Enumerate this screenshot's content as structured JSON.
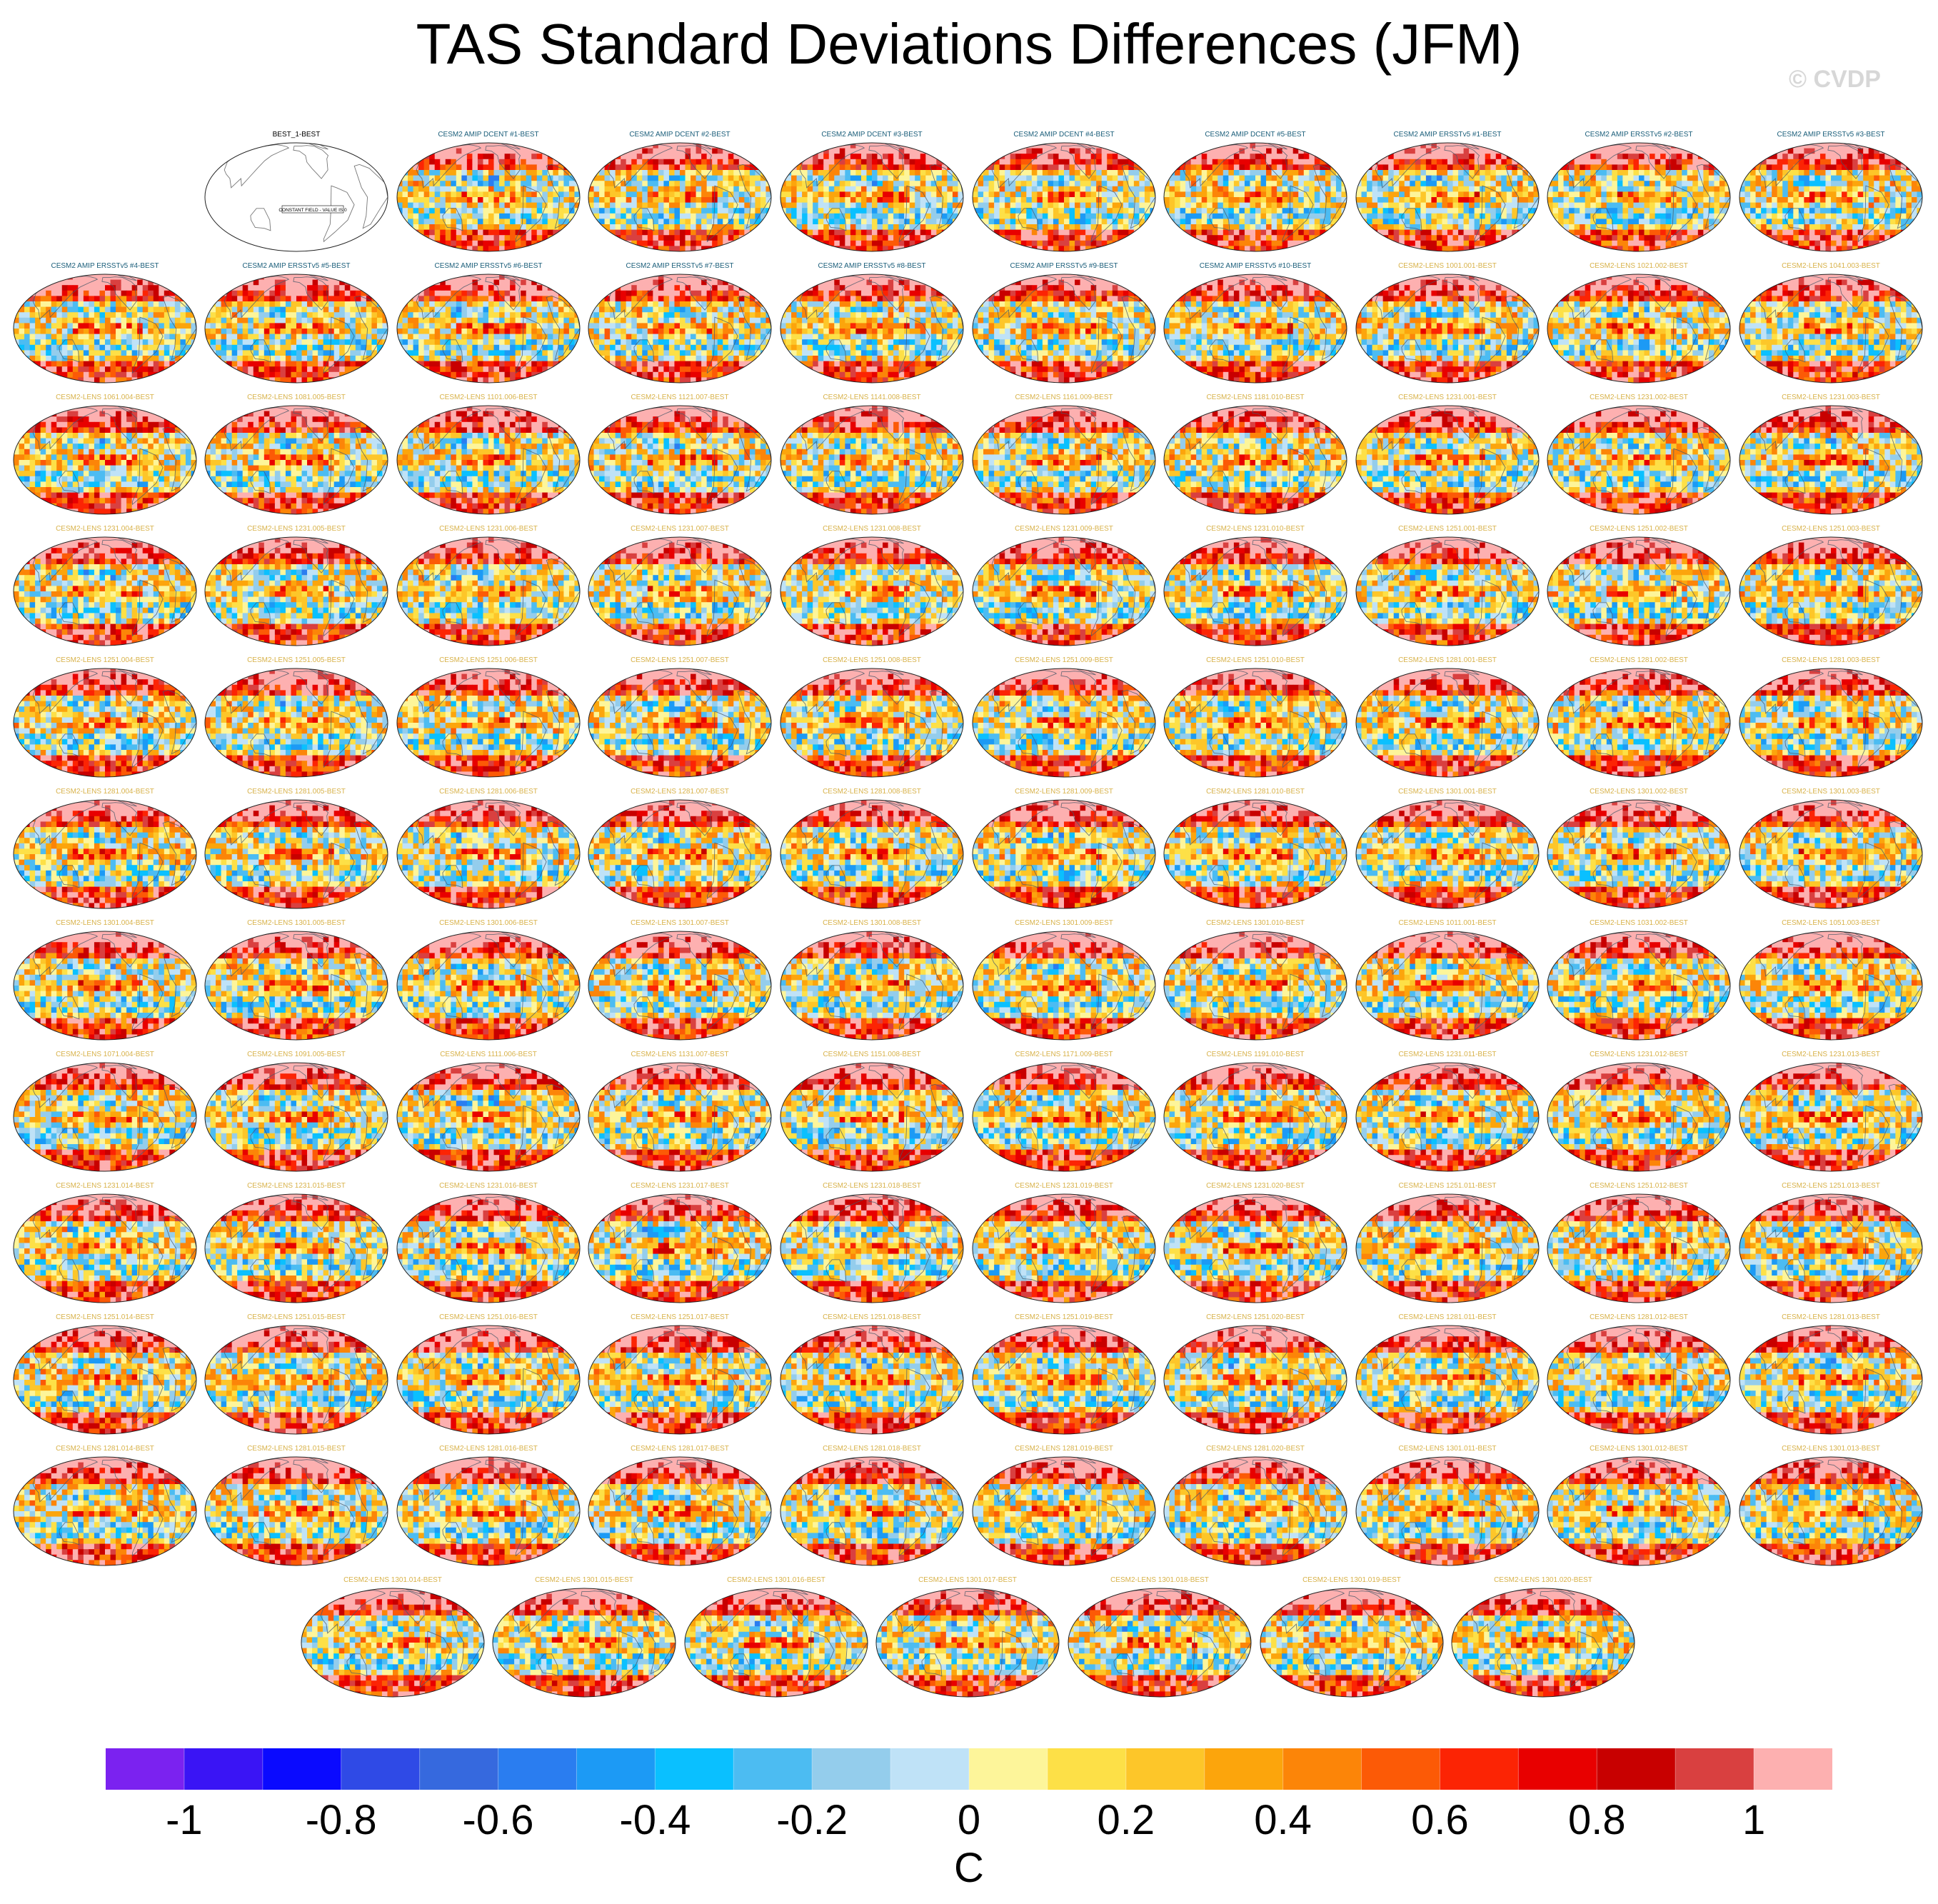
{
  "chart_data": {
    "type": "heatmap",
    "title": "TAS Standard Deviations Differences (JFM)",
    "credit": "© CVDP",
    "units": "C",
    "projection": "global map panels",
    "colorbar": {
      "ticks": [
        "-1",
        "-0.8",
        "-0.6",
        "-0.4",
        "-0.2",
        "0",
        "0.2",
        "0.4",
        "0.6",
        "0.8",
        "1"
      ],
      "range": [
        -1.1,
        1.1
      ],
      "colors": [
        "#7b22f0",
        "#3a14f5",
        "#0a0aff",
        "#2f4ae6",
        "#3669de",
        "#2a7df0",
        "#1c9af5",
        "#0ac0ff",
        "#4cbcf2",
        "#94cdec",
        "#bfe2f7",
        "#fdf59a",
        "#fde047",
        "#fdc629",
        "#fca50c",
        "#fc8508",
        "#fc5a06",
        "#fc2404",
        "#e80000",
        "#c80000",
        "#d94040",
        "#fdb0b0"
      ]
    },
    "panels": [
      {
        "label": "BEST_1-BEST",
        "note": "CONSTANT FIELD - VALUE IS 0",
        "constant": true
      },
      {
        "label": "CESM2 AMIP DCENT #1-BEST"
      },
      {
        "label": "CESM2 AMIP DCENT #2-BEST"
      },
      {
        "label": "CESM2 AMIP DCENT #3-BEST"
      },
      {
        "label": "CESM2 AMIP DCENT #4-BEST"
      },
      {
        "label": "CESM2 AMIP DCENT #5-BEST"
      },
      {
        "label": "CESM2 AMIP ERSSTv5 #1-BEST"
      },
      {
        "label": "CESM2 AMIP ERSSTv5 #2-BEST"
      },
      {
        "label": "CESM2 AMIP ERSSTv5 #3-BEST"
      },
      {
        "label": "CESM2 AMIP ERSSTv5 #4-BEST"
      },
      {
        "label": "CESM2 AMIP ERSSTv5 #5-BEST"
      },
      {
        "label": "CESM2 AMIP ERSSTv5 #6-BEST"
      },
      {
        "label": "CESM2 AMIP ERSSTv5 #7-BEST"
      },
      {
        "label": "CESM2 AMIP ERSSTv5 #8-BEST"
      },
      {
        "label": "CESM2 AMIP ERSSTv5 #9-BEST"
      },
      {
        "label": "CESM2 AMIP ERSSTv5 #10-BEST"
      },
      {
        "label": "CESM2-LENS 1001.001-BEST"
      },
      {
        "label": "CESM2-LENS 1021.002-BEST"
      },
      {
        "label": "CESM2-LENS 1041.003-BEST"
      },
      {
        "label": "CESM2-LENS 1061.004-BEST"
      },
      {
        "label": "CESM2-LENS 1081.005-BEST"
      },
      {
        "label": "CESM2-LENS 1101.006-BEST"
      },
      {
        "label": "CESM2-LENS 1121.007-BEST"
      },
      {
        "label": "CESM2-LENS 1141.008-BEST"
      },
      {
        "label": "CESM2-LENS 1161.009-BEST"
      },
      {
        "label": "CESM2-LENS 1181.010-BEST"
      },
      {
        "label": "CESM2-LENS 1231.001-BEST"
      },
      {
        "label": "CESM2-LENS 1231.002-BEST"
      },
      {
        "label": "CESM2-LENS 1231.003-BEST"
      },
      {
        "label": "CESM2-LENS 1231.004-BEST"
      },
      {
        "label": "CESM2-LENS 1231.005-BEST"
      },
      {
        "label": "CESM2-LENS 1231.006-BEST"
      },
      {
        "label": "CESM2-LENS 1231.007-BEST"
      },
      {
        "label": "CESM2-LENS 1231.008-BEST"
      },
      {
        "label": "CESM2-LENS 1231.009-BEST"
      },
      {
        "label": "CESM2-LENS 1231.010-BEST"
      },
      {
        "label": "CESM2-LENS 1251.001-BEST"
      },
      {
        "label": "CESM2-LENS 1251.002-BEST"
      },
      {
        "label": "CESM2-LENS 1251.003-BEST"
      },
      {
        "label": "CESM2-LENS 1251.004-BEST"
      },
      {
        "label": "CESM2-LENS 1251.005-BEST"
      },
      {
        "label": "CESM2-LENS 1251.006-BEST"
      },
      {
        "label": "CESM2-LENS 1251.007-BEST"
      },
      {
        "label": "CESM2-LENS 1251.008-BEST"
      },
      {
        "label": "CESM2-LENS 1251.009-BEST"
      },
      {
        "label": "CESM2-LENS 1251.010-BEST"
      },
      {
        "label": "CESM2-LENS 1281.001-BEST"
      },
      {
        "label": "CESM2-LENS 1281.002-BEST"
      },
      {
        "label": "CESM2-LENS 1281.003-BEST"
      },
      {
        "label": "CESM2-LENS 1281.004-BEST"
      },
      {
        "label": "CESM2-LENS 1281.005-BEST"
      },
      {
        "label": "CESM2-LENS 1281.006-BEST"
      },
      {
        "label": "CESM2-LENS 1281.007-BEST"
      },
      {
        "label": "CESM2-LENS 1281.008-BEST"
      },
      {
        "label": "CESM2-LENS 1281.009-BEST"
      },
      {
        "label": "CESM2-LENS 1281.010-BEST"
      },
      {
        "label": "CESM2-LENS 1301.001-BEST"
      },
      {
        "label": "CESM2-LENS 1301.002-BEST"
      },
      {
        "label": "CESM2-LENS 1301.003-BEST"
      },
      {
        "label": "CESM2-LENS 1301.004-BEST"
      },
      {
        "label": "CESM2-LENS 1301.005-BEST"
      },
      {
        "label": "CESM2-LENS 1301.006-BEST"
      },
      {
        "label": "CESM2-LENS 1301.007-BEST"
      },
      {
        "label": "CESM2-LENS 1301.008-BEST"
      },
      {
        "label": "CESM2-LENS 1301.009-BEST"
      },
      {
        "label": "CESM2-LENS 1301.010-BEST"
      },
      {
        "label": "CESM2-LENS 1011.001-BEST"
      },
      {
        "label": "CESM2-LENS 1031.002-BEST"
      },
      {
        "label": "CESM2-LENS 1051.003-BEST"
      },
      {
        "label": "CESM2-LENS 1071.004-BEST"
      },
      {
        "label": "CESM2-LENS 1091.005-BEST"
      },
      {
        "label": "CESM2-LENS 1111.006-BEST"
      },
      {
        "label": "CESM2-LENS 1131.007-BEST"
      },
      {
        "label": "CESM2-LENS 1151.008-BEST"
      },
      {
        "label": "CESM2-LENS 1171.009-BEST"
      },
      {
        "label": "CESM2-LENS 1191.010-BEST"
      },
      {
        "label": "CESM2-LENS 1231.011-BEST"
      },
      {
        "label": "CESM2-LENS 1231.012-BEST"
      },
      {
        "label": "CESM2-LENS 1231.013-BEST"
      },
      {
        "label": "CESM2-LENS 1231.014-BEST"
      },
      {
        "label": "CESM2-LENS 1231.015-BEST"
      },
      {
        "label": "CESM2-LENS 1231.016-BEST"
      },
      {
        "label": "CESM2-LENS 1231.017-BEST"
      },
      {
        "label": "CESM2-LENS 1231.018-BEST"
      },
      {
        "label": "CESM2-LENS 1231.019-BEST"
      },
      {
        "label": "CESM2-LENS 1231.020-BEST"
      },
      {
        "label": "CESM2-LENS 1251.011-BEST"
      },
      {
        "label": "CESM2-LENS 1251.012-BEST"
      },
      {
        "label": "CESM2-LENS 1251.013-BEST"
      },
      {
        "label": "CESM2-LENS 1251.014-BEST"
      },
      {
        "label": "CESM2-LENS 1251.015-BEST"
      },
      {
        "label": "CESM2-LENS 1251.016-BEST"
      },
      {
        "label": "CESM2-LENS 1251.017-BEST"
      },
      {
        "label": "CESM2-LENS 1251.018-BEST"
      },
      {
        "label": "CESM2-LENS 1251.019-BEST"
      },
      {
        "label": "CESM2-LENS 1251.020-BEST"
      },
      {
        "label": "CESM2-LENS 1281.011-BEST"
      },
      {
        "label": "CESM2-LENS 1281.012-BEST"
      },
      {
        "label": "CESM2-LENS 1281.013-BEST"
      },
      {
        "label": "CESM2-LENS 1281.014-BEST"
      },
      {
        "label": "CESM2-LENS 1281.015-BEST"
      },
      {
        "label": "CESM2-LENS 1281.016-BEST"
      },
      {
        "label": "CESM2-LENS 1281.017-BEST"
      },
      {
        "label": "CESM2-LENS 1281.018-BEST"
      },
      {
        "label": "CESM2-LENS 1281.019-BEST"
      },
      {
        "label": "CESM2-LENS 1281.020-BEST"
      },
      {
        "label": "CESM2-LENS 1301.011-BEST"
      },
      {
        "label": "CESM2-LENS 1301.012-BEST"
      },
      {
        "label": "CESM2-LENS 1301.013-BEST"
      },
      {
        "label": "CESM2-LENS 1301.014-BEST"
      },
      {
        "label": "CESM2-LENS 1301.015-BEST"
      },
      {
        "label": "CESM2-LENS 1301.016-BEST"
      },
      {
        "label": "CESM2-LENS 1301.017-BEST"
      },
      {
        "label": "CESM2-LENS 1301.018-BEST"
      },
      {
        "label": "CESM2-LENS 1301.019-BEST"
      },
      {
        "label": "CESM2-LENS 1301.020-BEST"
      }
    ]
  }
}
